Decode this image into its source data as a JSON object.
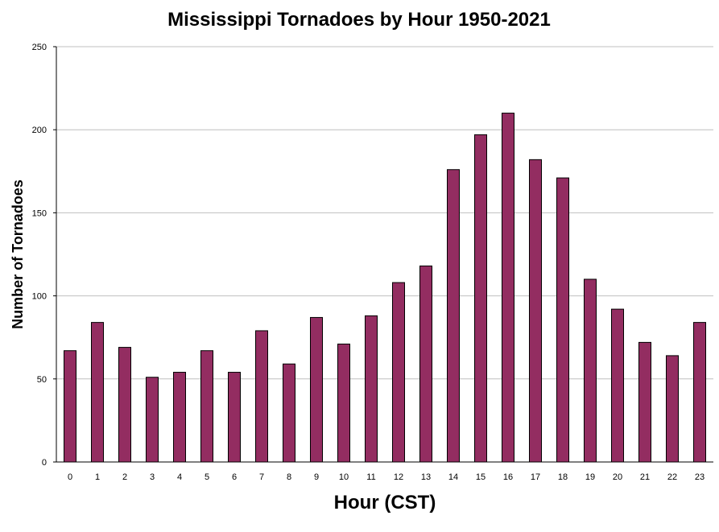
{
  "chart_data": {
    "type": "bar",
    "title": "Mississippi Tornadoes by Hour 1950-2021",
    "xlabel": "Hour (CST)",
    "ylabel": "Number of Tornadoes",
    "categories": [
      "0",
      "1",
      "2",
      "3",
      "4",
      "5",
      "6",
      "7",
      "8",
      "9",
      "10",
      "11",
      "12",
      "13",
      "14",
      "15",
      "16",
      "17",
      "18",
      "19",
      "20",
      "21",
      "22",
      "23"
    ],
    "values": [
      67,
      84,
      69,
      51,
      54,
      67,
      54,
      79,
      59,
      87,
      71,
      88,
      108,
      118,
      176,
      197,
      210,
      182,
      171,
      110,
      92,
      72,
      64,
      84
    ],
    "ylim": [
      0,
      250
    ],
    "yticks": [
      "0",
      "50",
      "100",
      "150",
      "200",
      "250"
    ],
    "grid": "horizontal",
    "legend": "none",
    "colors": {
      "bar_fill": "#932D61",
      "bar_stroke": "#000000",
      "grid": "#bfbfbf",
      "axis": "#000000"
    }
  }
}
